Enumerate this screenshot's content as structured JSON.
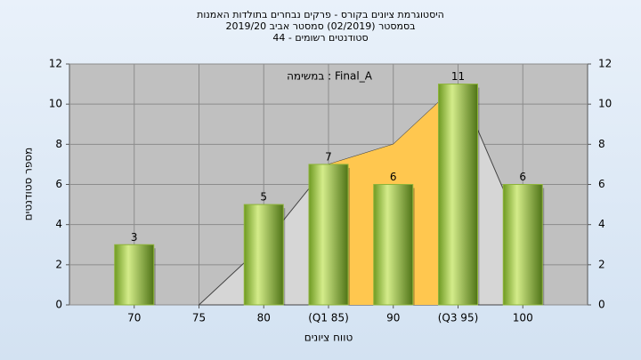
{
  "chart_data": {
    "type": "bar",
    "title": [
      "היסטוגרמת ציונים בקורס - פרקים נבחרים בתולדות האמנות",
      "בסמסטר  (02/2019)  סמסטר אביב 2019/20",
      "סטודנטים רשומים - 44"
    ],
    "annotation": "במשימה : Final_A",
    "x_label": "טווח ציונים",
    "y_label": "מספר סטודנטים",
    "categories": [
      "70",
      "75",
      "80",
      "(Q1 85)",
      "90",
      "(Q3 95)",
      "100"
    ],
    "values": [
      3,
      null,
      5,
      7,
      6,
      11,
      6
    ],
    "color": "#8db33a",
    "areas": [
      {
        "color": "#d6d6d6",
        "values": [
          null,
          0,
          3,
          7,
          8,
          11,
          3.5
        ]
      },
      {
        "color": "#ffc74f",
        "values": [
          null,
          null,
          null,
          7,
          8,
          11,
          null
        ]
      }
    ],
    "ylim": [
      0,
      12
    ],
    "yticks": [
      0,
      2,
      4,
      6,
      8,
      10,
      12
    ],
    "y2lim": [
      0,
      12
    ],
    "y2ticks": [
      0,
      2,
      4,
      6,
      8,
      10,
      12
    ],
    "grid": true
  }
}
